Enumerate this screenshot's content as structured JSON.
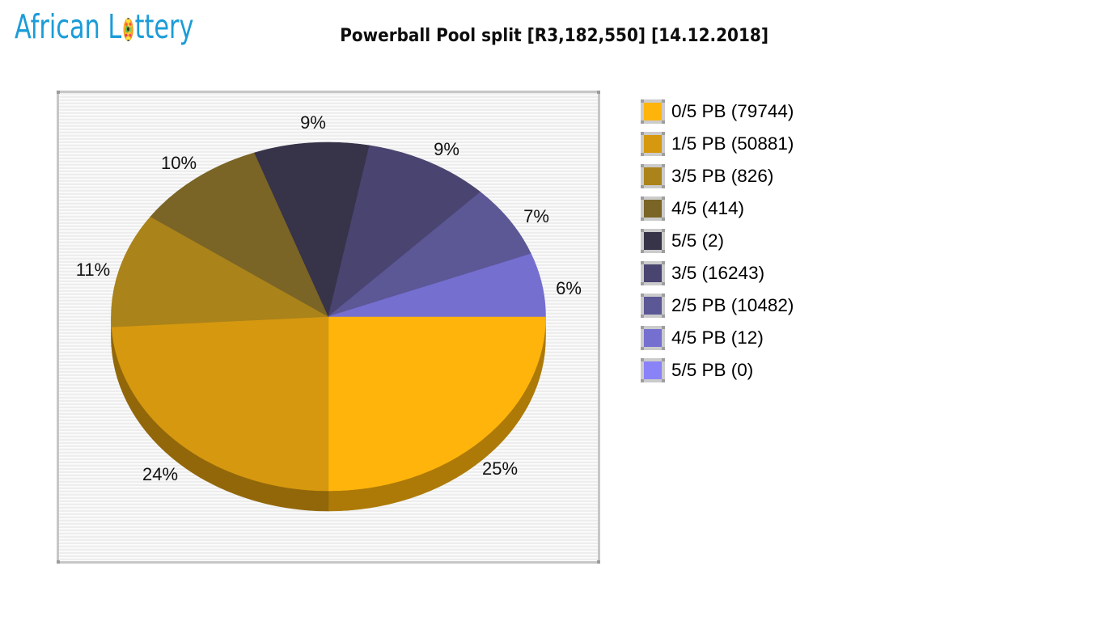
{
  "logo": {
    "text_before_ball": "African L",
    "text_after_ball": "ttery",
    "color": "#1b9cd8",
    "ball_icon": "lottery-ball"
  },
  "title": "Powerball Pool split [R3,182,550] [14.12.2018]",
  "chart_data": {
    "type": "pie",
    "style": "3d",
    "title": "Powerball Pool split [R3,182,550] [14.12.2018]",
    "pool_total": "R3,182,550",
    "draw_date": "14.12.2018",
    "legend_position": "right",
    "grid": "striped-background",
    "slices": [
      {
        "label": "0/5 PB (79744)",
        "percent": 25,
        "color": "#ffb40c"
      },
      {
        "label": "1/5 PB (50881)",
        "percent": 24,
        "color": "#d6980f"
      },
      {
        "label": "3/5 PB (826)",
        "percent": 11,
        "color": "#aa831a"
      },
      {
        "label": "4/5 (414)",
        "percent": 10,
        "color": "#7a6426"
      },
      {
        "label": "5/5 (2)",
        "percent": 9,
        "color": "#373349"
      },
      {
        "label": "3/5 (16243)",
        "percent": 9,
        "color": "#494470"
      },
      {
        "label": "2/5 PB (10482)",
        "percent": 7,
        "color": "#5c5795"
      },
      {
        "label": "4/5 PB (12)",
        "percent": 6,
        "color": "#756fd0"
      },
      {
        "label": "5/5 PB (0)",
        "percent": 0,
        "color": "#8a82f7"
      }
    ]
  }
}
